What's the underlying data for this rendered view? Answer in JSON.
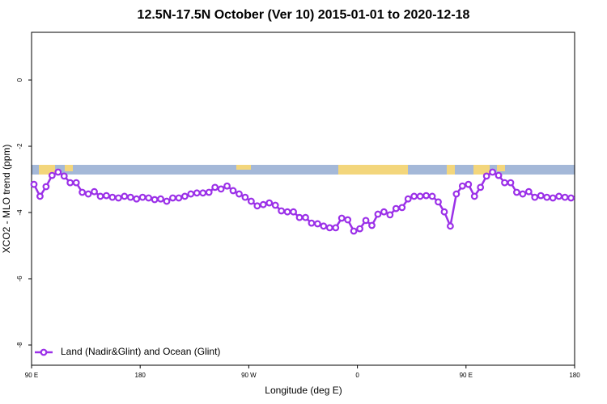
{
  "chart_data": {
    "type": "line",
    "title": "12.5N-17.5N October (Ver 10)   2015-01-01 to 2020-12-18",
    "x_label": "Longitude (deg E)",
    "y_label": "XCO2 - MLO trend (ppm)",
    "x": [
      92,
      97,
      102,
      107,
      112,
      117,
      122,
      127,
      132,
      137,
      142,
      147,
      152,
      157,
      162,
      167,
      172,
      177,
      182,
      187,
      192,
      197,
      202,
      207,
      212,
      217,
      222,
      227,
      232,
      237,
      242,
      247,
      252,
      257,
      262,
      267,
      272,
      277,
      282,
      287,
      292,
      297,
      302,
      307,
      312,
      317,
      322,
      327,
      332,
      337,
      342,
      347,
      352,
      357,
      362,
      367,
      372,
      377,
      382,
      387,
      392,
      397,
      402,
      407,
      412,
      417,
      422,
      427,
      432,
      437,
      442,
      447,
      452,
      457,
      462,
      467,
      472,
      477,
      482,
      487,
      492,
      497,
      502,
      507,
      512,
      517,
      522,
      527,
      532,
      537
    ],
    "series": [
      {
        "name": "Land (Nadir&Glint) and Ocean (Glint)",
        "color": "#9b30e8",
        "values": [
          -3.15,
          -3.51,
          -3.22,
          -2.88,
          -2.78,
          -2.9,
          -3.1,
          -3.1,
          -3.39,
          -3.44,
          -3.37,
          -3.51,
          -3.49,
          -3.54,
          -3.56,
          -3.51,
          -3.54,
          -3.59,
          -3.54,
          -3.56,
          -3.61,
          -3.59,
          -3.66,
          -3.56,
          -3.56,
          -3.51,
          -3.44,
          -3.41,
          -3.41,
          -3.39,
          -3.24,
          -3.29,
          -3.2,
          -3.34,
          -3.44,
          -3.54,
          -3.66,
          -3.8,
          -3.76,
          -3.71,
          -3.78,
          -3.95,
          -3.98,
          -3.98,
          -4.15,
          -4.15,
          -4.32,
          -4.34,
          -4.41,
          -4.46,
          -4.46,
          -4.17,
          -4.22,
          -4.56,
          -4.49,
          -4.24,
          -4.39,
          -4.05,
          -3.98,
          -4.07,
          -3.88,
          -3.85,
          -3.59,
          -3.51,
          -3.51,
          -3.49,
          -3.51,
          -3.68,
          -3.98,
          -4.41,
          -3.44,
          -3.2,
          -3.15,
          -3.51,
          -3.24,
          -2.9,
          -2.78,
          -2.88,
          -3.1,
          -3.1,
          -3.39,
          -3.44,
          -3.37,
          -3.54,
          -3.49,
          -3.54,
          -3.56,
          -3.51,
          -3.54,
          -3.56
        ]
      }
    ],
    "xlim": [
      90,
      540
    ],
    "xticks": [
      {
        "value": 90,
        "label": "90 E"
      },
      180,
      {
        "value": 270,
        "label": "90 W"
      },
      {
        "value": 360,
        "label": "0"
      },
      {
        "value": 450,
        "label": "90 E"
      },
      {
        "value": 540,
        "label": "180"
      }
    ],
    "ylim": [
      -8.61,
      1.44
    ],
    "yticks": [
      0,
      -2,
      -4,
      -6,
      -8
    ],
    "legend": "bottom-left"
  }
}
